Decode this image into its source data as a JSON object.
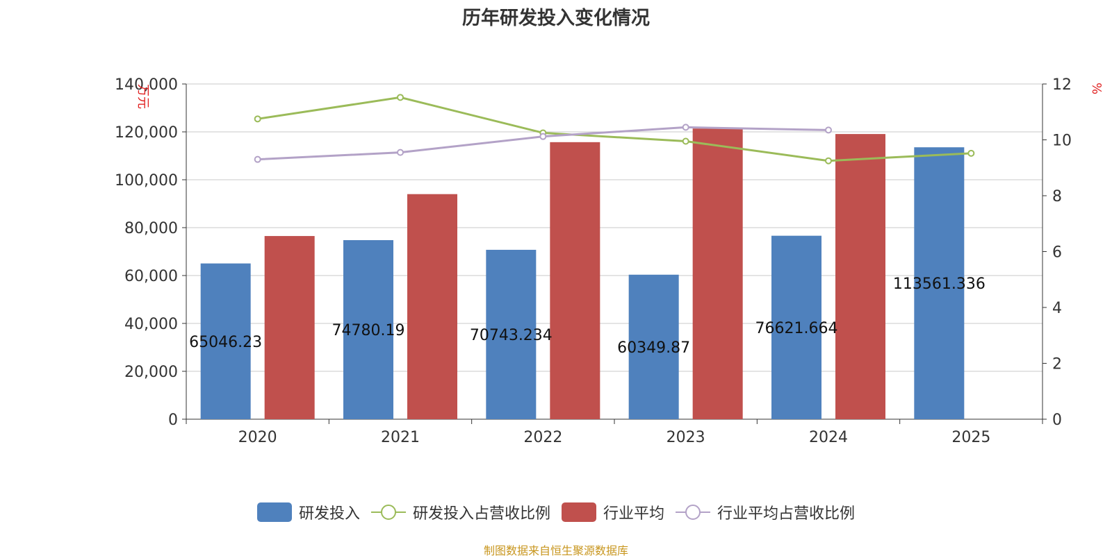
{
  "chart_data": {
    "type": "bar",
    "title": "历年研发投入变化情况",
    "categories": [
      "2020",
      "2021",
      "2022",
      "2023",
      "2024",
      "2025"
    ],
    "y_left": {
      "label": "万元",
      "ylim": [
        0,
        140000
      ],
      "ticks": [
        "0",
        "20,000",
        "40,000",
        "60,000",
        "80,000",
        "100,000",
        "120,000",
        "140,000"
      ]
    },
    "y_right": {
      "label": "%",
      "ylim": [
        0,
        12
      ],
      "ticks": [
        "0",
        "2",
        "4",
        "6",
        "8",
        "10",
        "12"
      ]
    },
    "series": [
      {
        "name": "研发投入",
        "type": "bar",
        "axis": "left",
        "color": "#4f81bd",
        "values": [
          65046.23,
          74780.19,
          70743.234,
          60349.87,
          76621.664,
          113561.336
        ],
        "labels": [
          "65046.23",
          "74780.19",
          "70743.234",
          "60349.87",
          "76621.664",
          "113561.336"
        ]
      },
      {
        "name": "研发投入占营收比例",
        "type": "line",
        "axis": "right",
        "color": "#9bbb59",
        "values": [
          10.75,
          11.52,
          10.25,
          9.95,
          9.25,
          9.52
        ]
      },
      {
        "name": "行业平均",
        "type": "bar",
        "axis": "left",
        "color": "#c0504d",
        "values": [
          76500,
          94000,
          115700,
          121400,
          119100,
          null
        ]
      },
      {
        "name": "行业平均占营收比例",
        "type": "line",
        "axis": "right",
        "color": "#b3a2c7",
        "values": [
          9.3,
          9.55,
          10.12,
          10.45,
          10.35,
          null
        ]
      }
    ],
    "grid": true,
    "legend_position": "bottom"
  },
  "source_text": "制图数据来自恒生聚源数据库"
}
